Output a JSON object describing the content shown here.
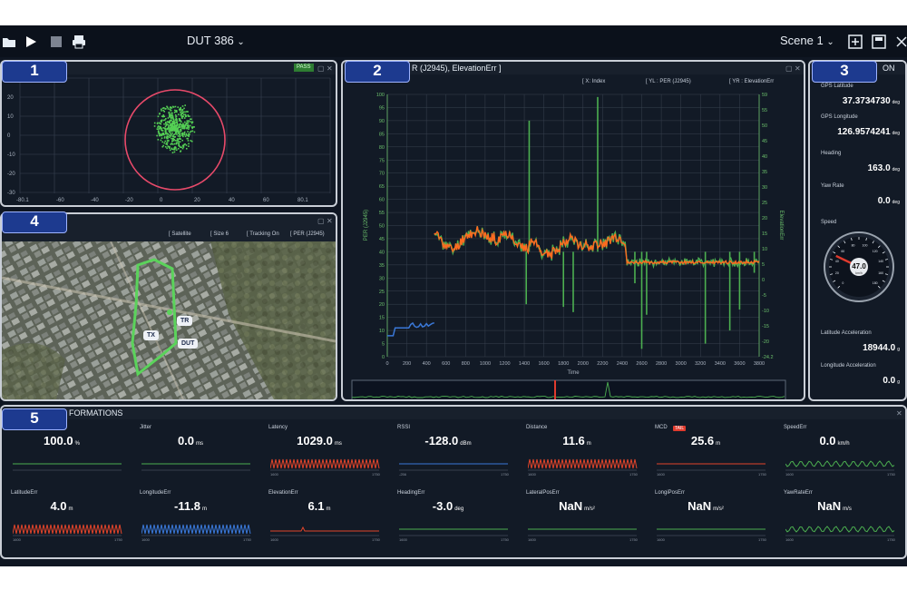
{
  "toolbar": {
    "dut_label": "DUT 386",
    "scene_label": "Scene 1"
  },
  "panel1": {
    "number": "1",
    "badge": "PASS",
    "y_ticks": [
      "20",
      "10",
      "0",
      "-10",
      "-20",
      "-30"
    ],
    "x_ticks": [
      "-80.1",
      "-60",
      "-40",
      "-20",
      "0",
      "20",
      "40",
      "60",
      "80.1"
    ]
  },
  "panel2": {
    "number": "2",
    "title": "R (J2945), ElevationErr ]",
    "x_label": "[ X:  Index",
    "yl_label": "[ YL :  PER (J2945)",
    "yr_label": "[ YR :  ElevationErr",
    "y_axis_title": "PER (J2945)",
    "yr_axis_title": "ElevationErr",
    "x_axis_title": "Time",
    "y_ticks": [
      "100",
      "95",
      "90",
      "85",
      "80",
      "75",
      "70",
      "65",
      "60",
      "55",
      "50",
      "45",
      "40",
      "35",
      "30",
      "25",
      "20",
      "15",
      "10",
      "5",
      "0"
    ],
    "yr_ticks": [
      "59",
      "55",
      "50",
      "45",
      "40",
      "35",
      "30",
      "25",
      "20",
      "15",
      "10",
      "5",
      "0",
      "-5",
      "-10",
      "-15",
      "-20",
      "-24.2"
    ],
    "x_ticks": [
      "0",
      "200",
      "400",
      "600",
      "800",
      "1000",
      "1200",
      "1400",
      "1600",
      "1800",
      "2000",
      "2200",
      "2400",
      "2600",
      "2800",
      "3000",
      "3200",
      "3400",
      "3600",
      "3800"
    ]
  },
  "panel3": {
    "number": "3",
    "title": "ON",
    "lat_label": "GPS Latitude",
    "lat_value": "37.3734730",
    "lat_unit": "deg",
    "lon_label": "GPS Longitude",
    "lon_value": "126.9574241",
    "lon_unit": "deg",
    "heading_label": "Heading",
    "heading_value": "163.0",
    "heading_unit": "deg",
    "yaw_label": "Yaw Rate",
    "yaw_value": "0.0",
    "yaw_unit": "deg",
    "speed_label": "Speed",
    "speed_value": "47.0",
    "speed_unit": "km/h",
    "gauge_ticks": [
      "0",
      "10",
      "20",
      "30",
      "40",
      "50",
      "60",
      "70",
      "80",
      "90",
      "100",
      "110",
      "120",
      "130",
      "140",
      "150",
      "160",
      "170",
      "180"
    ],
    "lat_acc_label": "Latitude Acceleration",
    "lat_acc_value": "18944.0",
    "lat_acc_unit": "g",
    "lon_acc_label": "Longitude Acceleration",
    "lon_acc_value": "0.0",
    "lon_acc_unit": "g"
  },
  "panel4": {
    "number": "4",
    "satellite": "[ Satellite",
    "size": "[ Size   6",
    "tracking": "[ Tracking On",
    "per": "[ PER (J2945)",
    "tx": "TX",
    "tr": "TR",
    "dut": "DUT"
  },
  "panel5": {
    "number": "5",
    "title": "FORMATIONS",
    "metrics": [
      {
        "label": "",
        "value": "100.0",
        "unit": "%",
        "color": "#4caf50",
        "ax_l": "",
        "ax_r": ""
      },
      {
        "label": "Jitter",
        "value": "0.0",
        "unit": "ms",
        "color": "#4caf50",
        "ax_l": "",
        "ax_r": ""
      },
      {
        "label": "Latency",
        "value": "1029.0",
        "unit": "ms",
        "color": "#e0442a",
        "ax_l": "1600",
        "ax_r": "1750"
      },
      {
        "label": "RSSI",
        "value": "-128.0",
        "unit": "dBm",
        "color": "#3a78d8",
        "ax_l": "-256",
        "ax_r": "1750"
      },
      {
        "label": "Distance",
        "value": "11.6",
        "unit": "m",
        "color": "#e0442a",
        "ax_l": "1600",
        "ax_r": "1750"
      },
      {
        "label": "MCD",
        "value": "25.6",
        "unit": "m",
        "color": "#e0442a",
        "ax_l": "1600",
        "ax_r": "1750",
        "tag": "TAIL"
      },
      {
        "label": "SpeedErr",
        "value": "0.0",
        "unit": "km/h",
        "color": "#4caf50",
        "ax_l": "1600",
        "ax_r": "1750"
      },
      {
        "label": "LatitudeErr",
        "value": "4.0",
        "unit": "m",
        "color": "#e0442a",
        "ax_l": "1600",
        "ax_r": "1750"
      },
      {
        "label": "LongitudeErr",
        "value": "-11.8",
        "unit": "m",
        "color": "#3a78d8",
        "ax_l": "1600",
        "ax_r": "1750"
      },
      {
        "label": "ElevationErr",
        "value": "6.1",
        "unit": "m",
        "color": "#e0442a",
        "ax_l": "1600",
        "ax_r": "1750"
      },
      {
        "label": "HeadingErr",
        "value": "-3.0",
        "unit": "deg",
        "color": "#4caf50",
        "ax_l": "1600",
        "ax_r": "1750"
      },
      {
        "label": "LateralPosErr",
        "value": "NaN",
        "unit": "m/s²",
        "color": "#4caf50",
        "ax_l": "1600",
        "ax_r": "1750"
      },
      {
        "label": "LongiPosErr",
        "value": "NaN",
        "unit": "m/s²",
        "color": "#4caf50",
        "ax_l": "1600",
        "ax_r": "1750"
      },
      {
        "label": "YawRateErr",
        "value": "NaN",
        "unit": "m/s",
        "color": "#4caf50",
        "ax_l": "1600",
        "ax_r": "1750"
      }
    ]
  },
  "colors": {
    "green": "#4caf50",
    "orange": "#ff6a1f",
    "blue": "#3a78d8",
    "red": "#e03b2e",
    "panel": "#121a26",
    "label_blue": "#1d3a8f"
  }
}
